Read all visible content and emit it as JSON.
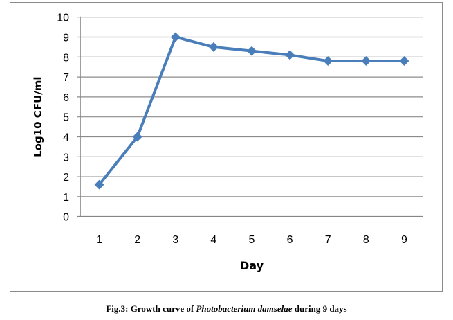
{
  "chart_data": {
    "type": "line",
    "title": "",
    "xlabel": "Day",
    "ylabel": "Log10 CFU/ml",
    "categories": [
      "1",
      "2",
      "3",
      "4",
      "5",
      "6",
      "7",
      "8",
      "9"
    ],
    "series": [
      {
        "name": "Photobacterium damselae",
        "values": [
          1.6,
          4,
          9,
          8.5,
          8.3,
          8.1,
          7.8,
          7.8,
          7.8
        ],
        "color": "#4a7ebb"
      }
    ],
    "ylim": [
      0,
      10
    ],
    "yticks": [
      "0",
      "1",
      "2",
      "3",
      "4",
      "5",
      "6",
      "7",
      "8",
      "9",
      "10"
    ],
    "grid": true,
    "legend": "none"
  },
  "caption": {
    "prefix": "Fig.3: Growth curve of ",
    "species": "Photobacterium damselae",
    "suffix": " during 9 days"
  }
}
